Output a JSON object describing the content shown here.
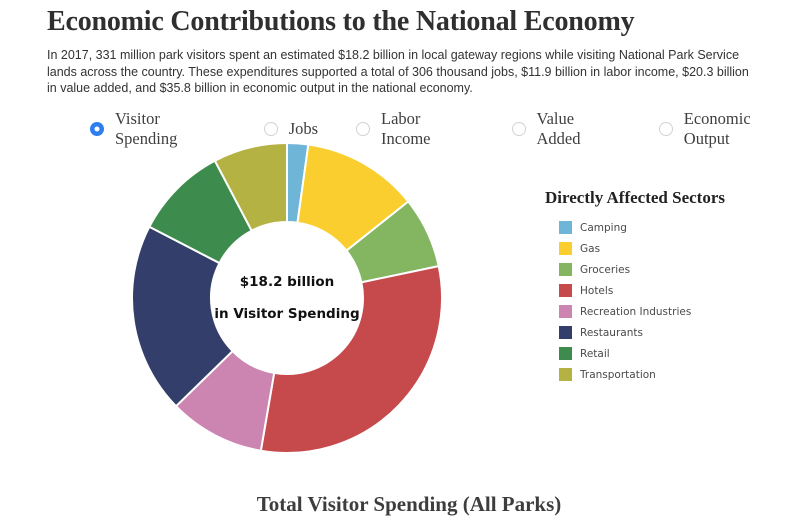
{
  "page": {
    "title": "Economic Contributions to the National Economy",
    "description": "In 2017, 331 million park visitors spent an estimated $18.2 billion in local gateway regions while visiting National Park Service lands across the country. These expenditures supported a total of 306 thousand jobs, $11.9 billion in labor income, $20.3 billion in value added, and $35.8 billion in economic output in the national economy."
  },
  "colors": {
    "radio_selected": "#2e7ef0",
    "slice_separator": "#ffffff"
  },
  "metric_selector": {
    "options": [
      {
        "label": "Visitor Spending",
        "selected": true
      },
      {
        "label": "Jobs",
        "selected": false
      },
      {
        "label": "Labor Income",
        "selected": false
      },
      {
        "label": "Value Added",
        "selected": false
      },
      {
        "label": "Economic Output",
        "selected": false
      }
    ]
  },
  "chart_data": {
    "type": "pie",
    "variant": "donut",
    "title": "Total Visitor Spending (All Parks)",
    "legend_title": "Directly Affected Sectors",
    "legend_position": "right",
    "start_angle_deg": 0,
    "direction": "clockwise",
    "total_label": "$18.2 billion",
    "center_label": {
      "line1": "$18.2 billion",
      "line2": "in Visitor Spending"
    },
    "slices": [
      {
        "label": "Camping",
        "percent": 2.2,
        "color": "#6fb5d8"
      },
      {
        "label": "Gas",
        "percent": 12.1,
        "color": "#f9ce2e"
      },
      {
        "label": "Groceries",
        "percent": 7.4,
        "color": "#84b560"
      },
      {
        "label": "Hotels",
        "percent": 31.0,
        "color": "#c6494b"
      },
      {
        "label": "Recreation Industries",
        "percent": 10.0,
        "color": "#cc85b1"
      },
      {
        "label": "Restaurants",
        "percent": 19.9,
        "color": "#333f6a"
      },
      {
        "label": "Retail",
        "percent": 9.7,
        "color": "#3e8c4d"
      },
      {
        "label": "Transportation",
        "percent": 7.7,
        "color": "#b4b242"
      }
    ]
  }
}
